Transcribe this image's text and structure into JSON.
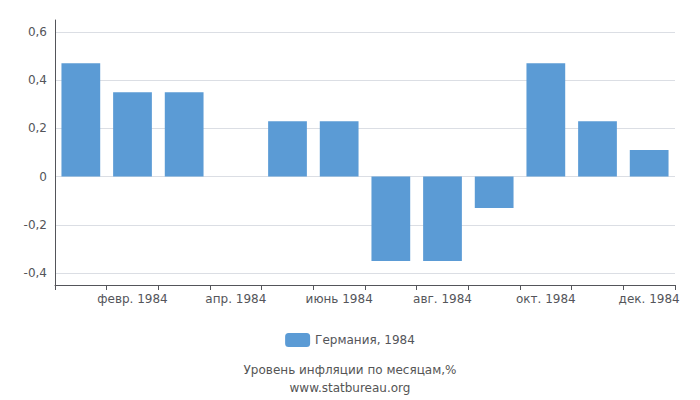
{
  "chart_data": {
    "type": "bar",
    "categories": [
      null,
      "февр. 1984",
      null,
      "апр. 1984",
      null,
      "июнь 1984",
      null,
      "авг. 1984",
      null,
      "окт. 1984",
      null,
      "дек. 1984"
    ],
    "series": [
      {
        "name": "Германия, 1984",
        "color": "#5b9bd5",
        "values": [
          0.47,
          0.35,
          0.35,
          0.0,
          0.23,
          0.23,
          -0.35,
          -0.35,
          -0.13,
          0.47,
          0.23,
          0.11
        ]
      }
    ],
    "ylim": [
      -0.45,
      0.65
    ],
    "yticks": [
      {
        "value": -0.4,
        "label": "-0,4"
      },
      {
        "value": -0.2,
        "label": "-0,2"
      },
      0,
      {
        "value": 0.2,
        "label": "0,2"
      },
      {
        "value": 0.4,
        "label": "0,4"
      },
      {
        "value": 0.6,
        "label": "0,6"
      }
    ],
    "grid": true,
    "legend": "bottom",
    "annotations": [
      "Уровень инфляции по месяцам,%",
      "www.statbureau.org"
    ]
  }
}
